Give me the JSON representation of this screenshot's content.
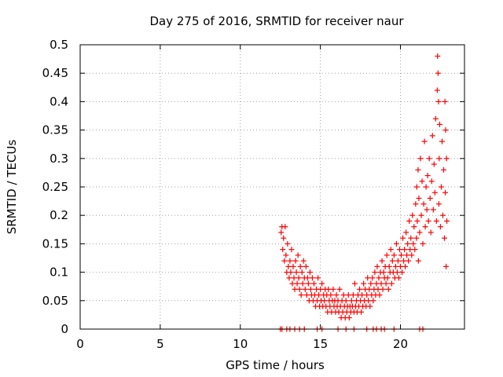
{
  "chart_data": {
    "type": "scatter",
    "title": "Day 275 of 2016, SRMTID for receiver naur",
    "xlabel": "GPS time / hours",
    "ylabel": "SRMTID / TECUs",
    "xlim": [
      0,
      24
    ],
    "ylim": [
      0,
      0.5
    ],
    "xticks": [
      "0",
      "5",
      "10",
      "15",
      "20"
    ],
    "yticks": [
      "0",
      "0.05",
      "0.1",
      "0.15",
      "0.2",
      "0.25",
      "0.3",
      "0.35",
      "0.4",
      "0.45",
      "0.5"
    ],
    "grid": true,
    "marker": "plus",
    "color": "#ff0000",
    "series": [
      {
        "points": [
          [
            12.55,
            0.17
          ],
          [
            12.6,
            0.18
          ],
          [
            12.65,
            0.14
          ],
          [
            12.7,
            0.16
          ],
          [
            12.75,
            0.12
          ],
          [
            12.8,
            0.18
          ],
          [
            12.85,
            0.13
          ],
          [
            12.9,
            0.1
          ],
          [
            12.95,
            0.15
          ],
          [
            13.0,
            0.11
          ],
          [
            13.05,
            0.09
          ],
          [
            13.1,
            0.12
          ],
          [
            13.15,
            0.1
          ],
          [
            13.2,
            0.14
          ],
          [
            13.25,
            0.08
          ],
          [
            13.3,
            0.11
          ],
          [
            13.35,
            0.09
          ],
          [
            13.4,
            0.07
          ],
          [
            13.45,
            0.12
          ],
          [
            13.5,
            0.1
          ],
          [
            13.55,
            0.08
          ],
          [
            13.6,
            0.13
          ],
          [
            13.65,
            0.09
          ],
          [
            13.7,
            0.07
          ],
          [
            13.75,
            0.11
          ],
          [
            13.8,
            0.06
          ],
          [
            13.85,
            0.1
          ],
          [
            13.9,
            0.08
          ],
          [
            13.95,
            0.12
          ],
          [
            14.0,
            0.09
          ],
          [
            14.05,
            0.07
          ],
          [
            14.1,
            0.11
          ],
          [
            14.15,
            0.06
          ],
          [
            14.2,
            0.09
          ],
          [
            14.25,
            0.08
          ],
          [
            14.3,
            0.05
          ],
          [
            14.35,
            0.1
          ],
          [
            14.4,
            0.07
          ],
          [
            14.45,
            0.06
          ],
          [
            14.5,
            0.09
          ],
          [
            14.55,
            0.05
          ],
          [
            14.6,
            0.08
          ],
          [
            14.65,
            0.06
          ],
          [
            14.7,
            0.04
          ],
          [
            14.75,
            0.07
          ],
          [
            14.8,
            0.05
          ],
          [
            14.85,
            0.09
          ],
          [
            14.9,
            0.06
          ],
          [
            14.95,
            0.04
          ],
          [
            15.0,
            0.07
          ],
          [
            15.05,
            0.05
          ],
          [
            15.1,
            0.08
          ],
          [
            15.15,
            0.04
          ],
          [
            15.2,
            0.06
          ],
          [
            15.25,
            0.05
          ],
          [
            15.3,
            0.07
          ],
          [
            15.35,
            0.04
          ],
          [
            15.4,
            0.06
          ],
          [
            15.45,
            0.03
          ],
          [
            15.5,
            0.07
          ],
          [
            15.55,
            0.05
          ],
          [
            15.6,
            0.04
          ],
          [
            15.65,
            0.06
          ],
          [
            15.7,
            0.03
          ],
          [
            15.75,
            0.05
          ],
          [
            15.8,
            0.07
          ],
          [
            15.85,
            0.04
          ],
          [
            15.9,
            0.05
          ],
          [
            15.95,
            0.03
          ],
          [
            16.0,
            0.06
          ],
          [
            16.05,
            0.04
          ],
          [
            16.1,
            0.05
          ],
          [
            16.15,
            0.03
          ],
          [
            16.2,
            0.07
          ],
          [
            16.25,
            0.04
          ],
          [
            16.3,
            0.02
          ],
          [
            16.35,
            0.05
          ],
          [
            16.4,
            0.03
          ],
          [
            16.45,
            0.06
          ],
          [
            16.5,
            0.04
          ],
          [
            16.55,
            0.02
          ],
          [
            16.6,
            0.05
          ],
          [
            16.65,
            0.03
          ],
          [
            16.7,
            0.04
          ],
          [
            16.75,
            0.06
          ],
          [
            16.8,
            0.02
          ],
          [
            16.85,
            0.04
          ],
          [
            16.9,
            0.03
          ],
          [
            16.95,
            0.05
          ],
          [
            17.0,
            0.04
          ],
          [
            17.05,
            0.06
          ],
          [
            17.1,
            0.03
          ],
          [
            17.15,
            0.08
          ],
          [
            17.2,
            0.04
          ],
          [
            17.25,
            0.05
          ],
          [
            17.3,
            0.03
          ],
          [
            17.35,
            0.06
          ],
          [
            17.4,
            0.04
          ],
          [
            17.45,
            0.07
          ],
          [
            17.5,
            0.05
          ],
          [
            17.55,
            0.03
          ],
          [
            17.6,
            0.06
          ],
          [
            17.65,
            0.04
          ],
          [
            17.7,
            0.08
          ],
          [
            17.75,
            0.05
          ],
          [
            17.8,
            0.07
          ],
          [
            17.85,
            0.04
          ],
          [
            17.9,
            0.06
          ],
          [
            17.95,
            0.09
          ],
          [
            18.0,
            0.05
          ],
          [
            18.05,
            0.07
          ],
          [
            18.1,
            0.04
          ],
          [
            18.15,
            0.08
          ],
          [
            18.2,
            0.06
          ],
          [
            18.25,
            0.09
          ],
          [
            18.3,
            0.05
          ],
          [
            18.35,
            0.07
          ],
          [
            18.4,
            0.1
          ],
          [
            18.45,
            0.06
          ],
          [
            18.5,
            0.08
          ],
          [
            18.55,
            0.11
          ],
          [
            18.6,
            0.07
          ],
          [
            18.65,
            0.09
          ],
          [
            18.7,
            0.06
          ],
          [
            18.75,
            0.1
          ],
          [
            18.8,
            0.08
          ],
          [
            18.85,
            0.12
          ],
          [
            18.9,
            0.07
          ],
          [
            18.95,
            0.1
          ],
          [
            19.0,
            0.09
          ],
          [
            19.05,
            0.11
          ],
          [
            19.1,
            0.08
          ],
          [
            19.15,
            0.13
          ],
          [
            19.2,
            0.09
          ],
          [
            19.25,
            0.07
          ],
          [
            19.3,
            0.11
          ],
          [
            19.35,
            0.1
          ],
          [
            19.4,
            0.14
          ],
          [
            19.45,
            0.08
          ],
          [
            19.5,
            0.12
          ],
          [
            19.55,
            0.1
          ],
          [
            19.6,
            0.13
          ],
          [
            19.65,
            0.09
          ],
          [
            19.7,
            0.11
          ],
          [
            19.75,
            0.15
          ],
          [
            19.8,
            0.1
          ],
          [
            19.85,
            0.12
          ],
          [
            19.9,
            0.09
          ],
          [
            19.95,
            0.14
          ],
          [
            20.0,
            0.11
          ],
          [
            20.05,
            0.13
          ],
          [
            20.1,
            0.1
          ],
          [
            20.15,
            0.16
          ],
          [
            20.2,
            0.12
          ],
          [
            20.25,
            0.14
          ],
          [
            20.3,
            0.11
          ],
          [
            20.35,
            0.17
          ],
          [
            20.4,
            0.13
          ],
          [
            20.45,
            0.15
          ],
          [
            20.5,
            0.12
          ],
          [
            20.55,
            0.19
          ],
          [
            20.6,
            0.14
          ],
          [
            20.65,
            0.16
          ],
          [
            20.7,
            0.13
          ],
          [
            20.75,
            0.2
          ],
          [
            20.8,
            0.15
          ],
          [
            20.85,
            0.18
          ],
          [
            20.9,
            0.14
          ],
          [
            20.95,
            0.22
          ],
          [
            21.0,
            0.16
          ],
          [
            21.02,
            0.25
          ],
          [
            21.05,
            0.19
          ],
          [
            21.1,
            0.28
          ],
          [
            21.12,
            0.12
          ],
          [
            21.15,
            0.23
          ],
          [
            21.2,
            0.17
          ],
          [
            21.25,
            0.3
          ],
          [
            21.3,
            0.2
          ],
          [
            21.35,
            0.26
          ],
          [
            21.4,
            0.15
          ],
          [
            21.45,
            0.22
          ],
          [
            21.5,
            0.33
          ],
          [
            21.55,
            0.18
          ],
          [
            21.6,
            0.25
          ],
          [
            21.65,
            0.21
          ],
          [
            21.7,
            0.27
          ],
          [
            21.75,
            0.19
          ],
          [
            21.8,
            0.3
          ],
          [
            21.85,
            0.23
          ],
          [
            21.9,
            0.17
          ],
          [
            21.95,
            0.26
          ],
          [
            22.0,
            0.34
          ],
          [
            22.05,
            0.21
          ],
          [
            22.1,
            0.29
          ],
          [
            22.15,
            0.24
          ],
          [
            22.2,
            0.37
          ],
          [
            22.25,
            0.19
          ],
          [
            22.3,
            0.42
          ],
          [
            22.32,
            0.48
          ],
          [
            22.35,
            0.45
          ],
          [
            22.38,
            0.4
          ],
          [
            22.4,
            0.22
          ],
          [
            22.42,
            0.3
          ],
          [
            22.45,
            0.36
          ],
          [
            22.5,
            0.18
          ],
          [
            22.55,
            0.25
          ],
          [
            22.6,
            0.33
          ],
          [
            22.65,
            0.2
          ],
          [
            22.7,
            0.28
          ],
          [
            22.75,
            0.16
          ],
          [
            22.78,
            0.4
          ],
          [
            22.8,
            0.24
          ],
          [
            22.82,
            0.35
          ],
          [
            22.85,
            0.11
          ],
          [
            22.88,
            0.3
          ],
          [
            22.9,
            0.19
          ]
        ]
      }
    ],
    "zero_points_x": [
      12.5,
      12.6,
      12.9,
      13.1,
      13.4,
      13.7,
      14.0,
      14.8,
      15.1,
      16.1,
      16.6,
      17.1,
      17.9,
      18.3,
      18.5,
      18.8,
      19.0,
      19.6,
      21.2,
      21.4
    ]
  }
}
